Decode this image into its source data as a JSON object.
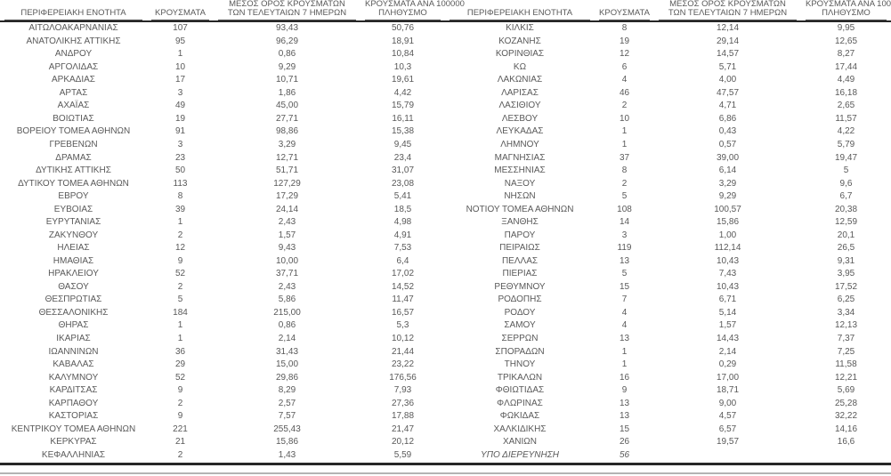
{
  "meta": {
    "italic_label": "ΥΠΟ ΔΙΕΡΕΥΝΗΣΗ",
    "text_color": "#595959",
    "border_color": "#262626"
  },
  "headers": {
    "region": "ΠΕΡΙΦΕΡΕΙΑΚΗ ΕΝΟΤΗΤΑ",
    "cases": "ΚΡΟΥΣΜΑΤΑ",
    "avg_line1": "ΜΕΣΟΣ ΟΡΟΣ ΚΡΟΥΣΜΑΤΩΝ",
    "avg_line2": "ΤΩΝ ΤΕΛΕΥΤΑΙΩΝ 7 ΗΜΕΡΩΝ",
    "per100k_line1": "ΚΡΟΥΣΜΑΤΑ ΑΝΑ 100000",
    "per100k_line2": "ΠΛΗΘΥΣΜΟ"
  },
  "chart_data": {
    "type": "table",
    "columns": [
      "ΠΕΡΙΦΕΡΕΙΑΚΗ ΕΝΟΤΗΤΑ",
      "ΚΡΟΥΣΜΑΤΑ",
      "ΜΕΣΟΣ ΟΡΟΣ ΚΡΟΥΣΜΑΤΩΝ ΤΩΝ ΤΕΛΕΥΤΑΙΩΝ 7 ΗΜΕΡΩΝ",
      "ΚΡΟΥΣΜΑΤΑ ΑΝΑ 100000 ΠΛΗΘΥΣΜΟ"
    ],
    "left_rows": [
      [
        "ΑΙΤΩΛΟΑΚΑΡΝΑΝΙΑΣ",
        "107",
        "93,43",
        "50,76"
      ],
      null,
      [
        "ΑΝΑΤΟΛΙΚΗΣ ΑΤΤΙΚΗΣ",
        "95",
        "96,29",
        "18,91"
      ],
      [
        "ΑΝΔΡΟΥ",
        "1",
        "0,86",
        "10,84"
      ],
      [
        "ΑΡΓΟΛΙΔΑΣ",
        "10",
        "9,29",
        "10,3"
      ],
      [
        "ΑΡΚΑΔΙΑΣ",
        "17",
        "10,71",
        "19,61"
      ],
      [
        "ΑΡΤΑΣ",
        "3",
        "1,86",
        "4,42"
      ],
      [
        "ΑΧΑΪΑΣ",
        "49",
        "45,00",
        "15,79"
      ],
      [
        "ΒΟΙΩΤΙΑΣ",
        "19",
        "27,71",
        "16,11"
      ],
      null,
      [
        "ΒΟΡΕΙΟΥ ΤΟΜΕΑ ΑΘΗΝΩΝ",
        "91",
        "98,86",
        "15,38"
      ],
      [
        "ΓΡΕΒΕΝΩΝ",
        "3",
        "3,29",
        "9,45"
      ],
      [
        "ΔΡΑΜΑΣ",
        "23",
        "12,71",
        "23,4"
      ],
      [
        "ΔΥΤΙΚΗΣ ΑΤΤΙΚΗΣ",
        "50",
        "51,71",
        "31,07"
      ],
      null,
      [
        "ΔΥΤΙΚΟΥ ΤΟΜΕΑ ΑΘΗΝΩΝ",
        "113",
        "127,29",
        "23,08"
      ],
      [
        "ΕΒΡΟΥ",
        "8",
        "17,29",
        "5,41"
      ],
      null,
      [
        "ΕΥΒΟΙΑΣ",
        "39",
        "24,14",
        "18,5"
      ],
      [
        "ΕΥΡΥΤΑΝΙΑΣ",
        "1",
        "2,43",
        "4,98"
      ],
      [
        "ΖΑΚΥΝΘΟΥ",
        "2",
        "1,57",
        "4,91"
      ],
      [
        "ΗΛΕΙΑΣ",
        "12",
        "9,43",
        "7,53"
      ],
      [
        "ΗΜΑΘΙΑΣ",
        "9",
        "10,00",
        "6,4"
      ],
      [
        "ΗΡΑΚΛΕΙΟΥ",
        "52",
        "37,71",
        "17,02"
      ],
      [
        "ΘΑΣΟΥ",
        "2",
        "2,43",
        "14,52"
      ],
      [
        "ΘΕΣΠΡΩΤΙΑΣ",
        "5",
        "5,86",
        "11,47"
      ],
      [
        "ΘΕΣΣΑΛΟΝΙΚΗΣ",
        "184",
        "215,00",
        "16,57"
      ],
      [
        "ΘΗΡΑΣ",
        "1",
        "0,86",
        "5,3"
      ],
      [
        "ΙΚΑΡΙΑΣ",
        "1",
        "2,14",
        "10,12"
      ],
      [
        "ΙΩΑΝΝΙΝΩΝ",
        "36",
        "31,43",
        "21,44"
      ],
      [
        "ΚΑΒΑΛΑΣ",
        "29",
        "15,00",
        "23,22"
      ],
      [
        "ΚΑΛΥΜΝΟΥ",
        "52",
        "29,86",
        "176,56"
      ],
      [
        "ΚΑΡΔΙΤΣΑΣ",
        "9",
        "8,29",
        "7,93"
      ],
      [
        "ΚΑΡΠΑΘΟΥ",
        "2",
        "2,57",
        "27,36"
      ],
      [
        "ΚΑΣΤΟΡΙΑΣ",
        "9",
        "7,57",
        "17,88"
      ],
      null,
      [
        "ΚΕΝΤΡΙΚΟΥ ΤΟΜΕΑ ΑΘΗΝΩΝ",
        "221",
        "255,43",
        "21,47"
      ],
      [
        "ΚΕΡΚΥΡΑΣ",
        "21",
        "15,86",
        "20,12"
      ],
      [
        "ΚΕΦΑΛΛΗΝΙΑΣ",
        "2",
        "1,43",
        "5,59"
      ]
    ],
    "right_rows": [
      [
        "ΚΙΛΚΙΣ",
        "8",
        "12,14",
        "9,95"
      ],
      null,
      [
        "ΚΟΖΑΝΗΣ",
        "19",
        "29,14",
        "12,65"
      ],
      [
        "ΚΟΡΙΝΘΙΑΣ",
        "12",
        "14,57",
        "8,27"
      ],
      [
        "ΚΩ",
        "6",
        "5,71",
        "17,44"
      ],
      [
        "ΛΑΚΩΝΙΑΣ",
        "4",
        "4,00",
        "4,49"
      ],
      [
        "ΛΑΡΙΣΑΣ",
        "46",
        "47,57",
        "16,18"
      ],
      [
        "ΛΑΣΙΘΙΟΥ",
        "2",
        "4,71",
        "2,65"
      ],
      [
        "ΛΕΣΒΟΥ",
        "10",
        "6,86",
        "11,57"
      ],
      null,
      [
        "ΛΕΥΚΑΔΑΣ",
        "1",
        "0,43",
        "4,22"
      ],
      [
        "ΛΗΜΝΟΥ",
        "1",
        "0,57",
        "5,79"
      ],
      [
        "ΜΑΓΝΗΣΙΑΣ",
        "37",
        "39,00",
        "19,47"
      ],
      [
        "ΜΕΣΣΗΝΙΑΣ",
        "8",
        "6,14",
        "5"
      ],
      null,
      [
        "ΝΑΞΟΥ",
        "2",
        "3,29",
        "9,6"
      ],
      [
        "ΝΗΣΩΝ",
        "5",
        "9,29",
        "6,7"
      ],
      null,
      [
        "ΝΟΤΙΟΥ ΤΟΜΕΑ ΑΘΗΝΩΝ",
        "108",
        "100,57",
        "20,38"
      ],
      [
        "ΞΑΝΘΗΣ",
        "14",
        "15,86",
        "12,59"
      ],
      [
        "ΠΑΡΟΥ",
        "3",
        "1,00",
        "20,1"
      ],
      [
        "ΠΕΙΡΑΙΩΣ",
        "119",
        "112,14",
        "26,5"
      ],
      [
        "ΠΕΛΛΑΣ",
        "13",
        "10,43",
        "9,31"
      ],
      [
        "ΠΙΕΡΙΑΣ",
        "5",
        "7,43",
        "3,95"
      ],
      [
        "ΡΕΘΥΜΝΟΥ",
        "15",
        "10,43",
        "17,52"
      ],
      [
        "ΡΟΔΟΠΗΣ",
        "7",
        "6,71",
        "6,25"
      ],
      [
        "ΡΟΔΟΥ",
        "4",
        "5,14",
        "3,34"
      ],
      [
        "ΣΑΜΟΥ",
        "4",
        "1,57",
        "12,13"
      ],
      [
        "ΣΕΡΡΩΝ",
        "13",
        "14,43",
        "7,37"
      ],
      [
        "ΣΠΟΡΑΔΩΝ",
        "1",
        "2,14",
        "7,25"
      ],
      [
        "ΤΗΝΟΥ",
        "1",
        "0,29",
        "11,58"
      ],
      [
        "ΤΡΙΚΑΛΩΝ",
        "16",
        "17,00",
        "12,21"
      ],
      [
        "ΦΘΙΩΤΙΔΑΣ",
        "9",
        "18,71",
        "5,69"
      ],
      [
        "ΦΛΩΡΙΝΑΣ",
        "13",
        "9,00",
        "25,28"
      ],
      [
        "ΦΩΚΙΔΑΣ",
        "13",
        "4,57",
        "32,22"
      ],
      null,
      [
        "ΧΑΛΚΙΔΙΚΗΣ",
        "15",
        "6,57",
        "14,16"
      ],
      [
        "ΧΑΝΙΩΝ",
        "26",
        "19,57",
        "16,6"
      ],
      [
        "ΥΠΟ ΔΙΕΡΕΥΝΗΣΗ",
        "56",
        "",
        ""
      ]
    ]
  }
}
